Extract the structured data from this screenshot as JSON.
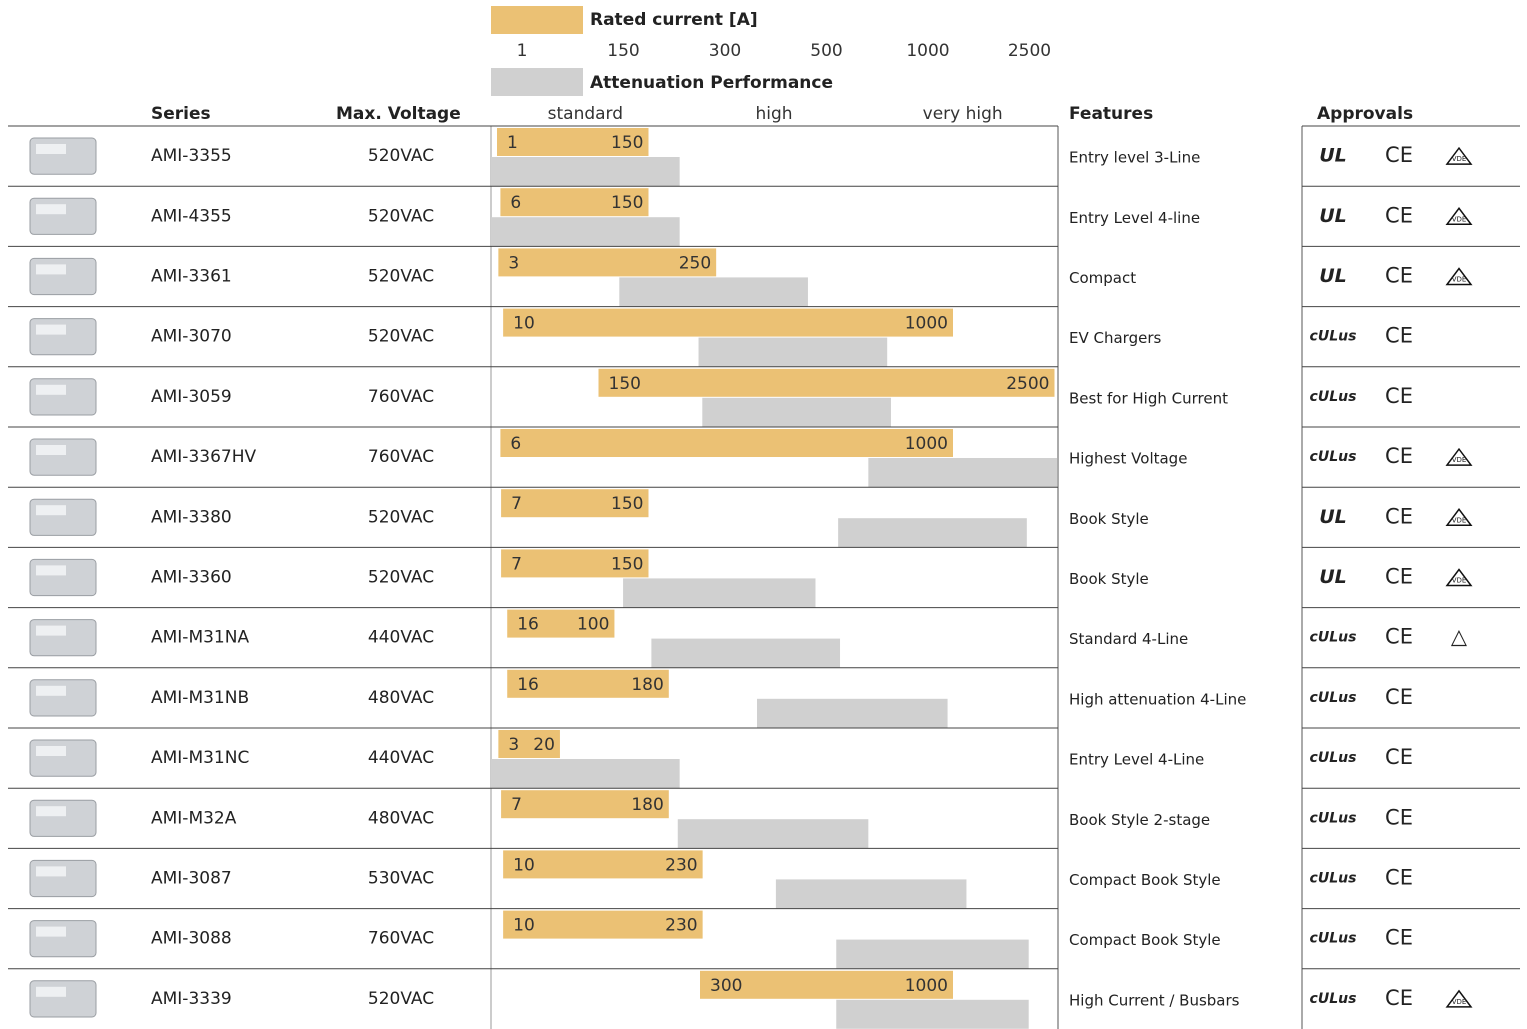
{
  "legend": {
    "rated_current": "Rated current [A]",
    "attenuation": "Attenuation Performance"
  },
  "current_scale": {
    "ticks": [
      1,
      150,
      300,
      500,
      1000,
      2500
    ]
  },
  "attenuation_scale": {
    "xlim": [
      0,
      3
    ],
    "ticks": [
      {
        "value": 0.5,
        "label": "standard"
      },
      {
        "value": 1.5,
        "label": "high"
      },
      {
        "value": 2.5,
        "label": "very high"
      }
    ]
  },
  "columns": {
    "series": "Series",
    "voltage": "Max. Voltage",
    "features": "Features",
    "approvals": "Approvals"
  },
  "rows": [
    {
      "series": "AMI-3355",
      "voltage": "520VAC",
      "current": [
        1,
        150
      ],
      "attenuation": [
        0,
        1.0
      ],
      "features": "Entry level 3-Line",
      "approvals": [
        "UL",
        "CE",
        "VDE"
      ]
    },
    {
      "series": "AMI-4355",
      "voltage": "520VAC",
      "current": [
        6,
        150
      ],
      "attenuation": [
        0,
        1.0
      ],
      "features": "Entry Level 4-line",
      "approvals": [
        "UL",
        "CE",
        "VDE"
      ]
    },
    {
      "series": "AMI-3361",
      "voltage": "520VAC",
      "current": [
        3,
        250
      ],
      "attenuation": [
        0.68,
        1.68
      ],
      "features": "Compact",
      "approvals": [
        "UL",
        "CE",
        "VDE"
      ]
    },
    {
      "series": "AMI-3070",
      "voltage": "520VAC",
      "current": [
        10,
        1000
      ],
      "attenuation": [
        1.1,
        2.1
      ],
      "features": "EV Chargers",
      "approvals": [
        "cULus",
        "CE"
      ]
    },
    {
      "series": "AMI-3059",
      "voltage": "760VAC",
      "current": [
        150,
        2500
      ],
      "attenuation": [
        1.12,
        2.12
      ],
      "features": "Best for High Current",
      "approvals": [
        "cULus",
        "CE"
      ]
    },
    {
      "series": "AMI-3367HV",
      "voltage": "760VAC",
      "current": [
        6,
        1000
      ],
      "attenuation": [
        2.0,
        3.0
      ],
      "features": "Highest Voltage",
      "approvals": [
        "cULus",
        "CE",
        "VDE"
      ]
    },
    {
      "series": "AMI-3380",
      "voltage": "520VAC",
      "current": [
        7,
        150
      ],
      "attenuation": [
        1.84,
        2.84
      ],
      "features": "Book Style",
      "approvals": [
        "UL",
        "CE",
        "VDE"
      ]
    },
    {
      "series": "AMI-3360",
      "voltage": "520VAC",
      "current": [
        7,
        150
      ],
      "attenuation": [
        0.7,
        1.72
      ],
      "features": "Book Style",
      "approvals": [
        "UL",
        "CE",
        "VDE"
      ]
    },
    {
      "series": "AMI-M31NA",
      "voltage": "440VAC",
      "current": [
        16,
        100
      ],
      "attenuation": [
        0.85,
        1.85
      ],
      "features": "Standard 4-Line",
      "approvals": [
        "cULus",
        "CE",
        "△"
      ]
    },
    {
      "series": "AMI-M31NB",
      "voltage": "480VAC",
      "current": [
        16,
        180
      ],
      "attenuation": [
        1.41,
        2.42
      ],
      "features": "High attenuation 4-Line",
      "approvals": [
        "cULus",
        "CE"
      ]
    },
    {
      "series": "AMI-M31NC",
      "voltage": "440VAC",
      "current": [
        3,
        20
      ],
      "attenuation": [
        0,
        1.0
      ],
      "features": "Entry Level 4-Line",
      "approvals": [
        "cULus",
        "CE"
      ]
    },
    {
      "series": "AMI-M32A",
      "voltage": "480VAC",
      "current": [
        7,
        180
      ],
      "attenuation": [
        0.99,
        2.0
      ],
      "features": "Book Style 2-stage",
      "approvals": [
        "cULus",
        "CE"
      ]
    },
    {
      "series": "AMI-3087",
      "voltage": "530VAC",
      "current": [
        10,
        230
      ],
      "attenuation": [
        1.51,
        2.52
      ],
      "features": "Compact Book Style",
      "approvals": [
        "cULus",
        "CE"
      ]
    },
    {
      "series": "AMI-3088",
      "voltage": "760VAC",
      "current": [
        10,
        230
      ],
      "attenuation": [
        1.83,
        2.85
      ],
      "features": "Compact Book Style",
      "approvals": [
        "cULus",
        "CE"
      ]
    },
    {
      "series": "AMI-3339",
      "voltage": "520VAC",
      "current": [
        300,
        1000
      ],
      "attenuation": [
        1.83,
        2.85
      ],
      "features": "High Current / Busbars",
      "approvals": [
        "cULus",
        "CE",
        "VDE"
      ]
    }
  ]
}
